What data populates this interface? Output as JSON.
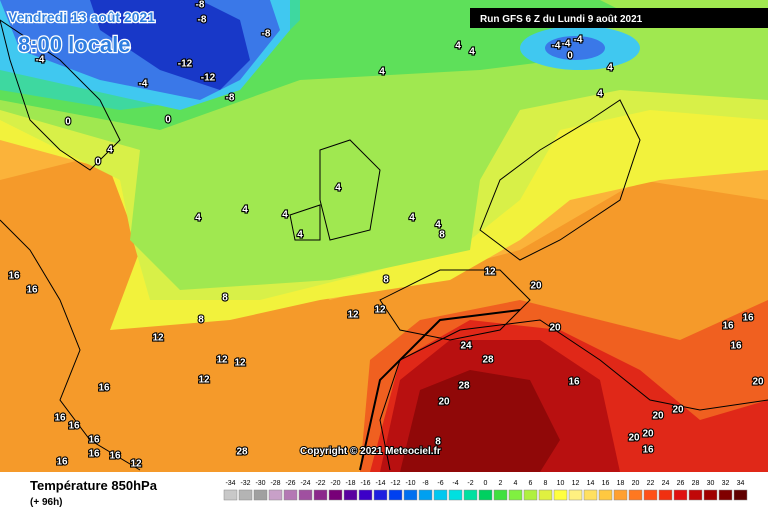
{
  "header": {
    "date": "Vendredi 13 août 2021",
    "time": "8:00 locale",
    "run": "Run GFS 6 Z du Lundi 9 août 2021"
  },
  "copyright": "Copyright © 2021 Meteociel.fr",
  "footer": {
    "title": "Température 850hPa",
    "lead": "(+ 96h)"
  },
  "contour_labels": [
    -8,
    -8,
    -8,
    -12,
    -12,
    -4,
    -8,
    0,
    -4,
    -4,
    -4,
    -4,
    0,
    4,
    4,
    4,
    4,
    4,
    4,
    4,
    4,
    4,
    4,
    4,
    4,
    8,
    8,
    8,
    8,
    12,
    12,
    12,
    12,
    12,
    12,
    12,
    16,
    16,
    16,
    20,
    20,
    24,
    28,
    28,
    20,
    16,
    16,
    16,
    16,
    20,
    20,
    20,
    20,
    20,
    16,
    16,
    16,
    16,
    16,
    16,
    16,
    12,
    28,
    8,
    0,
    0,
    4
  ],
  "legend": {
    "values": [
      -34,
      -32,
      -30,
      -28,
      -26,
      -24,
      -22,
      -20,
      -18,
      -16,
      -14,
      -12,
      -10,
      -8,
      -6,
      -4,
      -2,
      0,
      2,
      4,
      6,
      8,
      10,
      12,
      14,
      16,
      18,
      20,
      22,
      24,
      26,
      28,
      30,
      32,
      34
    ],
    "colors": [
      "#c8c8c8",
      "#b4b4b4",
      "#a0a0a0",
      "#c8a0c8",
      "#b478b4",
      "#a050a0",
      "#8c288c",
      "#780078",
      "#5a00a0",
      "#3c00c8",
      "#1e1ee0",
      "#0040f0",
      "#0070f0",
      "#00a0f0",
      "#00c8f0",
      "#00e0e0",
      "#00e0a0",
      "#00d060",
      "#40e040",
      "#80f040",
      "#b0f040",
      "#e0f040",
      "#ffff40",
      "#fff080",
      "#ffe060",
      "#ffc840",
      "#ffa030",
      "#ff7820",
      "#ff5018",
      "#f03010",
      "#e01010",
      "#c00808",
      "#a00000",
      "#800000",
      "#600000"
    ]
  }
}
